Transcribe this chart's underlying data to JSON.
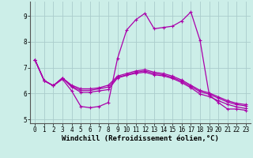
{
  "background_color": "#cceee8",
  "grid_color": "#aacccc",
  "line_color": "#aa00aa",
  "marker": "+",
  "markersize": 3,
  "linewidth": 0.9,
  "xlim": [
    -0.5,
    23.5
  ],
  "ylim": [
    4.85,
    9.55
  ],
  "yticks": [
    5,
    6,
    7,
    8,
    9
  ],
  "xticks": [
    0,
    1,
    2,
    3,
    4,
    5,
    6,
    7,
    8,
    9,
    10,
    11,
    12,
    13,
    14,
    15,
    16,
    17,
    18,
    19,
    20,
    21,
    22,
    23
  ],
  "xlabel": "Windchill (Refroidissement éolien,°C)",
  "xlabel_fontsize": 6.5,
  "tick_fontsize": 5.5,
  "series": [
    [
      7.3,
      6.5,
      6.3,
      6.55,
      6.1,
      5.5,
      5.45,
      5.5,
      5.65,
      7.35,
      8.45,
      8.85,
      9.1,
      8.5,
      8.55,
      8.6,
      8.8,
      9.15,
      8.05,
      5.95,
      5.65,
      5.4,
      5.4,
      5.35
    ],
    [
      7.3,
      6.5,
      6.3,
      6.6,
      6.25,
      6.05,
      6.05,
      6.1,
      6.15,
      6.6,
      6.7,
      6.78,
      6.82,
      6.72,
      6.68,
      6.58,
      6.42,
      6.22,
      5.98,
      5.88,
      5.72,
      5.58,
      5.48,
      5.42
    ],
    [
      7.3,
      6.5,
      6.3,
      6.6,
      6.28,
      6.12,
      6.12,
      6.18,
      6.25,
      6.62,
      6.72,
      6.82,
      6.87,
      6.77,
      6.72,
      6.62,
      6.47,
      6.27,
      6.07,
      5.97,
      5.82,
      5.67,
      5.57,
      5.52
    ],
    [
      7.3,
      6.5,
      6.3,
      6.6,
      6.32,
      6.18,
      6.18,
      6.22,
      6.32,
      6.67,
      6.77,
      6.87,
      6.92,
      6.82,
      6.77,
      6.67,
      6.52,
      6.32,
      6.12,
      6.02,
      5.87,
      5.72,
      5.62,
      5.57
    ]
  ]
}
